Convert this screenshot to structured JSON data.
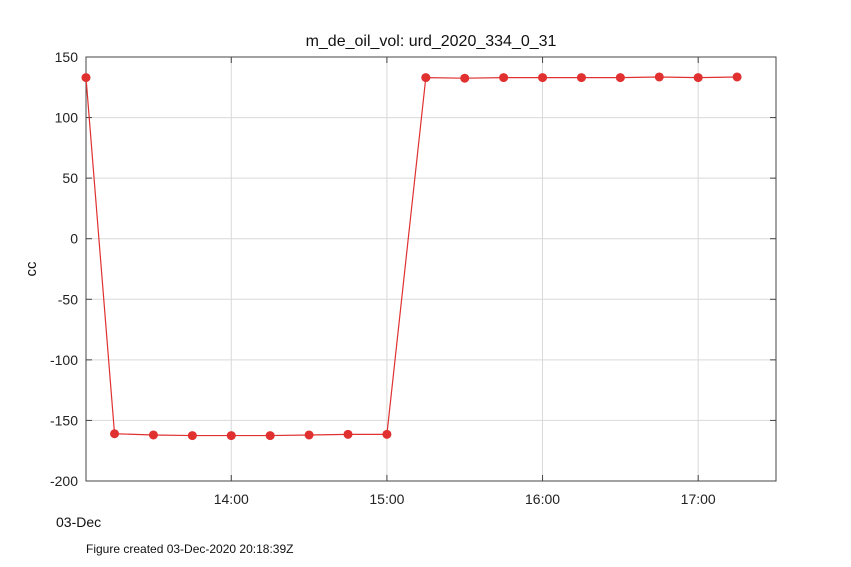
{
  "chart_data": {
    "type": "line",
    "title": "m_de_oil_vol: urd_2020_334_0_31",
    "ylabel": "cc",
    "xlabel": "",
    "date_label": "03-Dec",
    "x_ticks": [
      "14:00",
      "15:00",
      "16:00",
      "17:00"
    ],
    "y_ticks": [
      150,
      100,
      50,
      0,
      -50,
      -100,
      -150,
      -200
    ],
    "xlim": [
      "13:04",
      "17:30"
    ],
    "ylim": [
      -200,
      150
    ],
    "grid": true,
    "series": [
      {
        "color": "#e03030",
        "marker": "circle",
        "x": [
          "13:04",
          "13:15",
          "13:30",
          "13:45",
          "14:00",
          "14:15",
          "14:30",
          "14:45",
          "15:00",
          "15:15",
          "15:30",
          "15:45",
          "16:00",
          "16:15",
          "16:30",
          "16:45",
          "17:00",
          "17:15"
        ],
        "values": [
          133,
          -161,
          -162,
          -162.5,
          -162.5,
          -162.5,
          -162,
          -161.5,
          -161.5,
          133,
          132.5,
          133,
          133,
          133,
          133,
          133.5,
          133,
          133.5
        ]
      }
    ]
  },
  "footer": "Figure created 03-Dec-2020 20:18:39Z"
}
